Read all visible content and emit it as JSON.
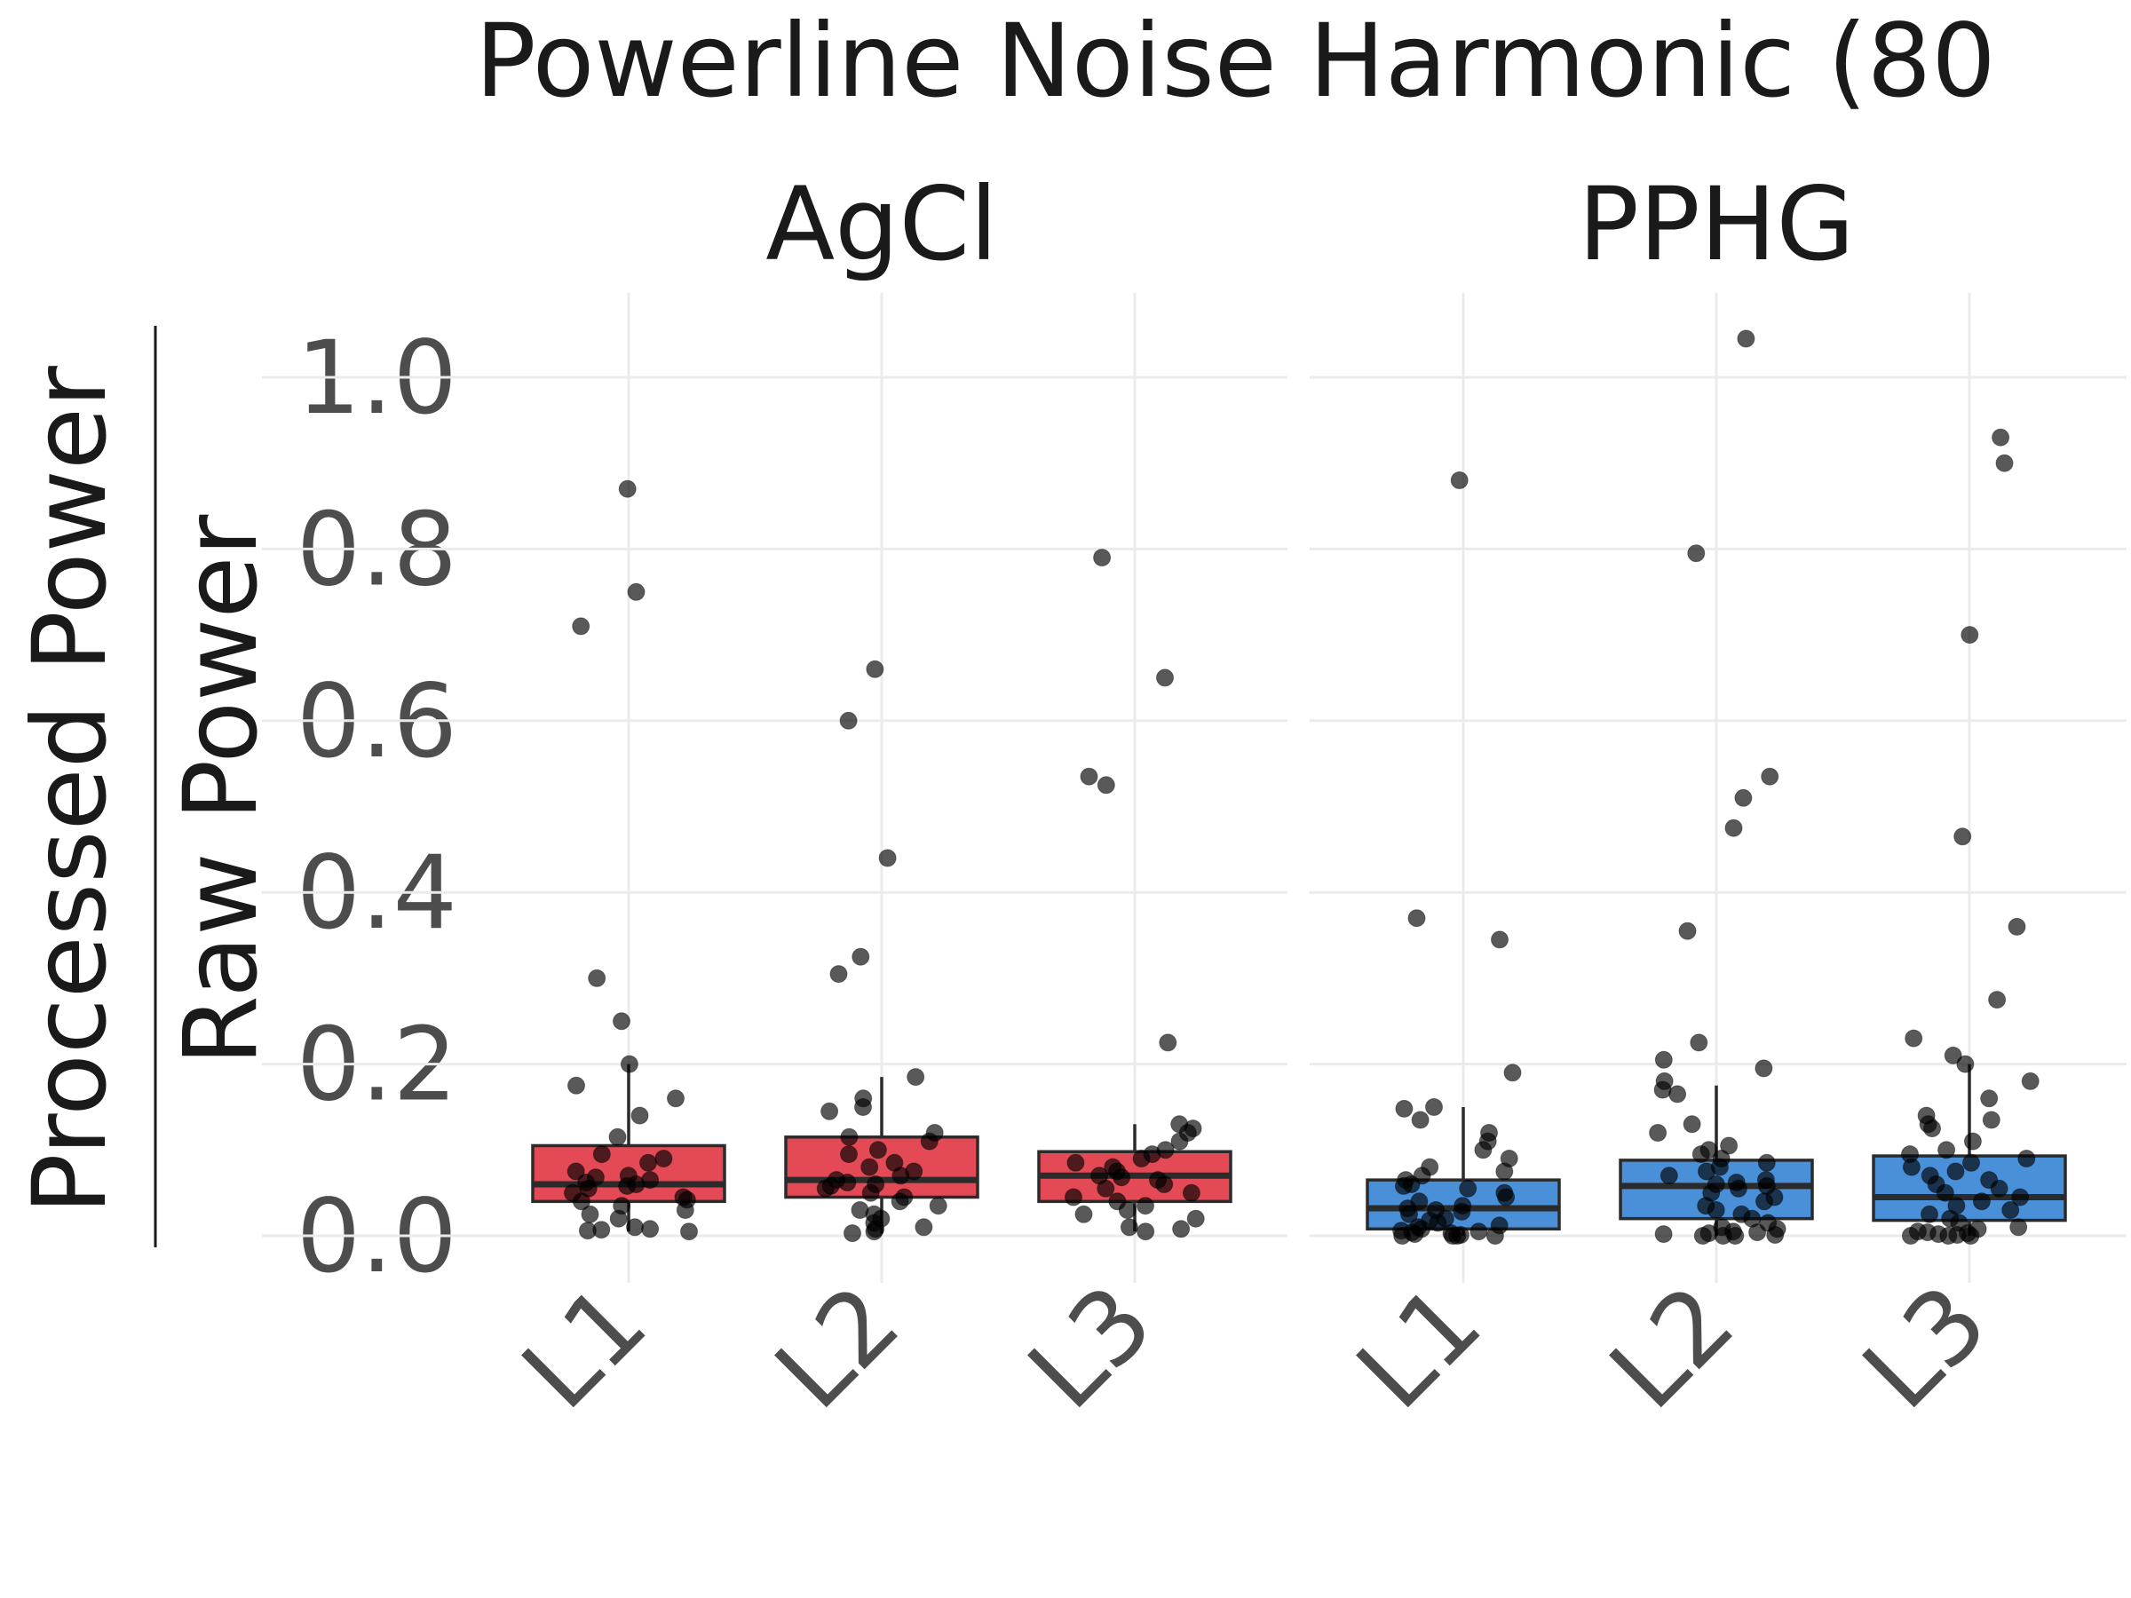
{
  "chart_data": {
    "type": "box",
    "title": "Powerline Noise Harmonic (80",
    "ylabel_numerator": "Processed Power",
    "ylabel_denominator": "Raw Power",
    "ylim": [
      -0.04,
      1.09
    ],
    "yticks": [
      "0.0",
      "0.2",
      "0.4",
      "0.6",
      "0.8",
      "1.0"
    ],
    "ytick_values": [
      0.0,
      0.2,
      0.4,
      0.6,
      0.8,
      1.0
    ],
    "categories": [
      "L1",
      "L2",
      "L3"
    ],
    "colors": {
      "AgCl": "#E34A55",
      "PPHG": "#4A90D9",
      "points": "#000000",
      "grid": "#EBEBEB"
    },
    "panels": [
      {
        "name": "AgCl",
        "boxes": [
          {
            "category": "L1",
            "q1": 0.04,
            "median": 0.06,
            "q3": 0.105,
            "whisker_low": 0.005,
            "whisker_high": 0.2,
            "points": [
              0.87,
              0.75,
              0.71,
              0.3,
              0.25,
              0.2,
              0.175,
              0.16,
              0.14,
              0.115,
              0.095,
              0.09,
              0.085,
              0.075,
              0.07,
              0.068,
              0.065,
              0.062,
              0.06,
              0.058,
              0.055,
              0.05,
              0.045,
              0.042,
              0.04,
              0.035,
              0.03,
              0.025,
              0.02,
              0.01,
              0.008,
              0.007,
              0.006,
              0.005
            ]
          },
          {
            "category": "L2",
            "q1": 0.045,
            "median": 0.065,
            "q3": 0.115,
            "whisker_low": 0.003,
            "whisker_high": 0.185,
            "points": [
              0.66,
              0.6,
              0.44,
              0.325,
              0.305,
              0.185,
              0.16,
              0.15,
              0.145,
              0.12,
              0.115,
              0.11,
              0.1,
              0.095,
              0.085,
              0.08,
              0.075,
              0.07,
              0.065,
              0.062,
              0.06,
              0.058,
              0.055,
              0.05,
              0.045,
              0.04,
              0.035,
              0.03,
              0.025,
              0.02,
              0.015,
              0.01,
              0.008,
              0.005,
              0.003
            ]
          },
          {
            "category": "L3",
            "q1": 0.04,
            "median": 0.07,
            "q3": 0.098,
            "whisker_low": 0.005,
            "whisker_high": 0.13,
            "points": [
              0.79,
              0.65,
              0.535,
              0.525,
              0.225,
              0.13,
              0.125,
              0.12,
              0.11,
              0.1,
              0.095,
              0.09,
              0.085,
              0.08,
              0.075,
              0.07,
              0.068,
              0.065,
              0.06,
              0.055,
              0.05,
              0.045,
              0.04,
              0.035,
              0.03,
              0.025,
              0.02,
              0.01,
              0.008,
              0.005
            ]
          }
        ]
      },
      {
        "name": "PPHG",
        "boxes": [
          {
            "category": "L1",
            "q1": 0.008,
            "median": 0.032,
            "q3": 0.065,
            "whisker_low": 0.0,
            "whisker_high": 0.15,
            "points": [
              0.88,
              0.37,
              0.345,
              0.19,
              0.15,
              0.148,
              0.135,
              0.12,
              0.11,
              0.1,
              0.09,
              0.08,
              0.075,
              0.07,
              0.065,
              0.06,
              0.058,
              0.055,
              0.05,
              0.045,
              0.04,
              0.035,
              0.032,
              0.03,
              0.028,
              0.025,
              0.02,
              0.018,
              0.015,
              0.012,
              0.01,
              0.008,
              0.006,
              0.005,
              0.004,
              0.003,
              0.002,
              0.001,
              0.0,
              0.0,
              0.0,
              0.0
            ]
          },
          {
            "category": "L2",
            "q1": 0.02,
            "median": 0.058,
            "q3": 0.088,
            "whisker_low": 0.0,
            "whisker_high": 0.175,
            "points": [
              1.045,
              0.795,
              0.535,
              0.51,
              0.475,
              0.355,
              0.225,
              0.205,
              0.195,
              0.18,
              0.17,
              0.165,
              0.13,
              0.12,
              0.105,
              0.1,
              0.095,
              0.09,
              0.085,
              0.08,
              0.075,
              0.07,
              0.065,
              0.062,
              0.06,
              0.058,
              0.055,
              0.05,
              0.045,
              0.04,
              0.035,
              0.03,
              0.025,
              0.02,
              0.015,
              0.01,
              0.008,
              0.005,
              0.004,
              0.003,
              0.002,
              0.001,
              0.0,
              0.0,
              0.0
            ]
          },
          {
            "category": "L3",
            "q1": 0.018,
            "median": 0.045,
            "q3": 0.093,
            "whisker_low": 0.0,
            "whisker_high": 0.2,
            "points": [
              0.93,
              0.9,
              0.7,
              0.465,
              0.36,
              0.275,
              0.23,
              0.21,
              0.2,
              0.18,
              0.16,
              0.14,
              0.135,
              0.13,
              0.125,
              0.11,
              0.1,
              0.095,
              0.09,
              0.085,
              0.08,
              0.075,
              0.07,
              0.065,
              0.06,
              0.055,
              0.05,
              0.045,
              0.04,
              0.035,
              0.03,
              0.025,
              0.02,
              0.015,
              0.01,
              0.008,
              0.005,
              0.004,
              0.003,
              0.002,
              0.001,
              0.0,
              0.0,
              0.0
            ]
          }
        ]
      }
    ],
    "grid": true,
    "legend": "none"
  }
}
